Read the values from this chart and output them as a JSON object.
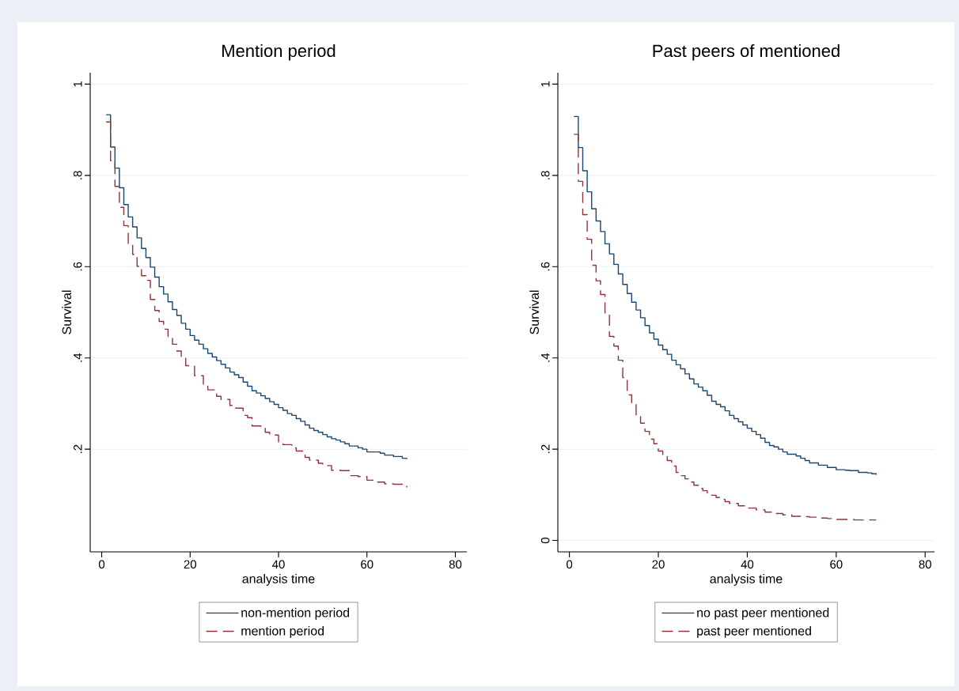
{
  "chart_data": [
    {
      "type": "step",
      "title": "Mention period",
      "xlabel": "analysis time",
      "ylabel": "Survival",
      "xlim": [
        -2.6,
        82.6
      ],
      "ylim": [
        -0.025,
        1.025
      ],
      "xticks": [
        0,
        20,
        40,
        60,
        80
      ],
      "yticks": [
        {
          "value": 0.2,
          "label": ".2"
        },
        {
          "value": 0.4,
          "label": ".4"
        },
        {
          "value": 0.6,
          "label": ".6"
        },
        {
          "value": 0.8,
          "label": ".8"
        },
        1
      ],
      "grid": "y",
      "legend": "bottom",
      "series": [
        {
          "name": "non-mention period",
          "color": "#1a476f",
          "line_style": "solid",
          "x": [
            1,
            2,
            3,
            4,
            5,
            6,
            7,
            8,
            9,
            10,
            11,
            12,
            13,
            14,
            15,
            16,
            17,
            18,
            19,
            20,
            21,
            22,
            23,
            24,
            25,
            26,
            27,
            28,
            29,
            30,
            31,
            32,
            33,
            34,
            35,
            36,
            37,
            38,
            39,
            40,
            41,
            42,
            43,
            44,
            45,
            46,
            47,
            48,
            49,
            50,
            51,
            52,
            53,
            54,
            55,
            56,
            58,
            59,
            60,
            63,
            64,
            66,
            68,
            69
          ],
          "values": [
            0.933,
            0.862,
            0.816,
            0.773,
            0.736,
            0.709,
            0.687,
            0.663,
            0.64,
            0.62,
            0.599,
            0.577,
            0.556,
            0.54,
            0.523,
            0.506,
            0.493,
            0.476,
            0.463,
            0.449,
            0.439,
            0.43,
            0.42,
            0.41,
            0.402,
            0.394,
            0.386,
            0.378,
            0.369,
            0.363,
            0.357,
            0.347,
            0.338,
            0.328,
            0.323,
            0.317,
            0.311,
            0.304,
            0.298,
            0.291,
            0.285,
            0.278,
            0.274,
            0.267,
            0.261,
            0.253,
            0.246,
            0.241,
            0.237,
            0.232,
            0.227,
            0.223,
            0.22,
            0.216,
            0.212,
            0.207,
            0.203,
            0.2,
            0.194,
            0.191,
            0.187,
            0.184,
            0.18,
            0.178
          ]
        },
        {
          "name": "mention period",
          "color": "#90353b",
          "line_style": "dashed",
          "x": [
            1,
            2,
            3,
            4,
            5,
            6,
            7,
            8,
            9,
            10,
            11,
            12,
            13,
            14,
            15,
            16,
            17,
            18,
            19,
            21,
            23,
            24,
            26,
            27,
            29,
            30,
            32,
            33,
            34,
            36,
            37,
            38,
            40,
            41,
            43,
            44,
            46,
            47,
            49,
            50,
            52,
            54,
            56,
            58,
            60,
            62,
            64,
            66,
            68,
            69
          ],
          "values": [
            0.917,
            0.832,
            0.776,
            0.73,
            0.69,
            0.65,
            0.627,
            0.601,
            0.58,
            0.57,
            0.528,
            0.504,
            0.48,
            0.463,
            0.447,
            0.43,
            0.415,
            0.4,
            0.383,
            0.361,
            0.34,
            0.33,
            0.316,
            0.309,
            0.296,
            0.29,
            0.274,
            0.269,
            0.251,
            0.247,
            0.237,
            0.231,
            0.216,
            0.21,
            0.203,
            0.196,
            0.182,
            0.176,
            0.169,
            0.164,
            0.154,
            0.153,
            0.142,
            0.14,
            0.132,
            0.128,
            0.124,
            0.123,
            0.119,
            0.116
          ]
        }
      ]
    },
    {
      "type": "step",
      "title": "Past peers of mentioned",
      "xlabel": "analysis time",
      "ylabel": "Survival",
      "xlim": [
        -2.6,
        82.1
      ],
      "ylim": [
        -0.025,
        1.025
      ],
      "xticks": [
        0,
        20,
        40,
        60,
        80
      ],
      "yticks": [
        0,
        {
          "value": 0.2,
          "label": ".2"
        },
        {
          "value": 0.4,
          "label": ".4"
        },
        {
          "value": 0.6,
          "label": ".6"
        },
        {
          "value": 0.8,
          "label": ".8"
        },
        1
      ],
      "grid": "y",
      "legend": "bottom",
      "series": [
        {
          "name": "no past peer mentioned",
          "color": "#1a476f",
          "line_style": "solid",
          "x": [
            1,
            2,
            3,
            4,
            5,
            6,
            7,
            8,
            9,
            10,
            11,
            12,
            13,
            14,
            15,
            16,
            17,
            18,
            19,
            20,
            21,
            22,
            23,
            24,
            25,
            26,
            27,
            28,
            29,
            30,
            31,
            32,
            33,
            34,
            35,
            36,
            37,
            38,
            39,
            40,
            41,
            42,
            43,
            44,
            45,
            46,
            47,
            48,
            49,
            51,
            52,
            53,
            54,
            56,
            58,
            60,
            62,
            63,
            65,
            67,
            68,
            69
          ],
          "values": [
            0.929,
            0.861,
            0.81,
            0.764,
            0.727,
            0.7,
            0.677,
            0.65,
            0.628,
            0.605,
            0.584,
            0.561,
            0.541,
            0.522,
            0.505,
            0.488,
            0.471,
            0.455,
            0.441,
            0.428,
            0.418,
            0.408,
            0.395,
            0.385,
            0.376,
            0.365,
            0.354,
            0.343,
            0.336,
            0.328,
            0.318,
            0.305,
            0.298,
            0.293,
            0.284,
            0.274,
            0.267,
            0.26,
            0.253,
            0.246,
            0.239,
            0.232,
            0.224,
            0.215,
            0.208,
            0.205,
            0.2,
            0.194,
            0.189,
            0.185,
            0.18,
            0.175,
            0.17,
            0.165,
            0.16,
            0.155,
            0.154,
            0.153,
            0.149,
            0.148,
            0.146,
            0.144
          ]
        },
        {
          "name": "past peer mentioned",
          "color": "#90353b",
          "line_style": "dashed",
          "x": [
            1,
            2,
            3,
            4,
            5,
            6,
            7,
            8,
            9,
            10,
            11,
            12,
            13,
            14,
            15,
            16,
            17,
            18,
            19,
            20,
            21,
            22,
            23,
            24,
            25,
            26,
            27,
            28,
            29,
            30,
            31,
            32,
            33,
            34,
            35,
            36,
            38,
            40,
            42,
            44,
            46,
            48,
            50,
            52,
            54,
            56,
            58,
            60,
            64,
            69
          ],
          "values": [
            0.89,
            0.787,
            0.714,
            0.66,
            0.603,
            0.569,
            0.539,
            0.496,
            0.447,
            0.426,
            0.395,
            0.357,
            0.319,
            0.302,
            0.273,
            0.257,
            0.239,
            0.222,
            0.212,
            0.196,
            0.184,
            0.175,
            0.163,
            0.149,
            0.142,
            0.135,
            0.128,
            0.121,
            0.114,
            0.109,
            0.104,
            0.099,
            0.094,
            0.09,
            0.085,
            0.081,
            0.076,
            0.071,
            0.067,
            0.062,
            0.059,
            0.056,
            0.053,
            0.052,
            0.051,
            0.049,
            0.048,
            0.046,
            0.045,
            0.045
          ]
        }
      ]
    }
  ]
}
